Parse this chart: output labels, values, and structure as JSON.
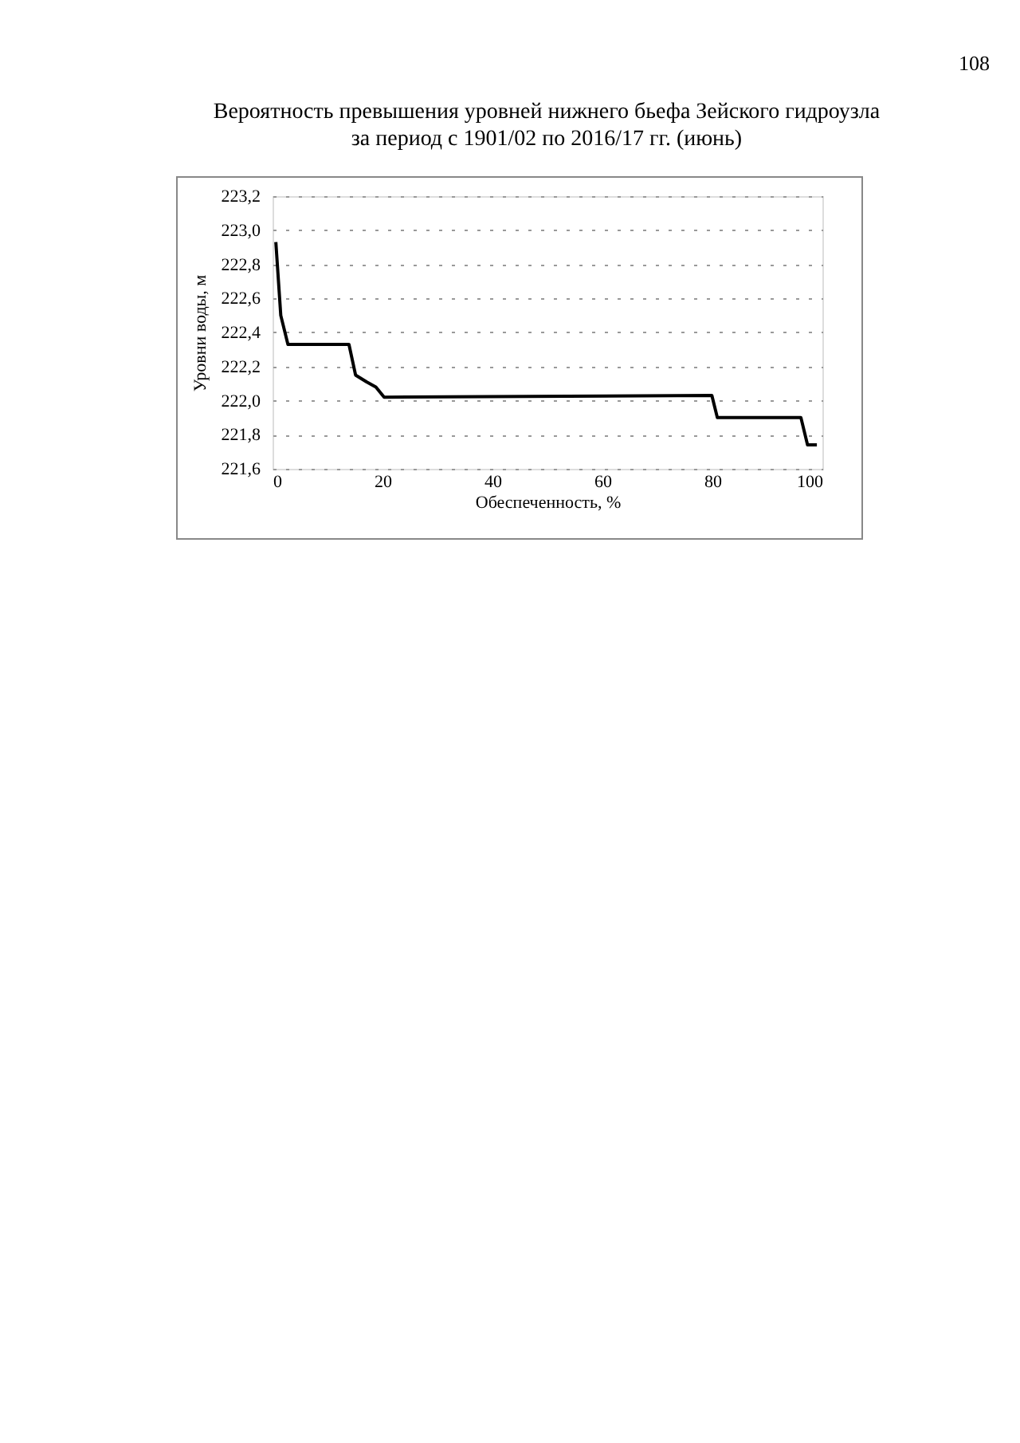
{
  "chart_data": {
    "type": "line",
    "title": "Вероятность превышения уровней нижнего бьефа Зейского гидроузла\nза период с 1901/02 по 2016/17 гг. (июнь)",
    "xlabel": "Обеспеченность, %",
    "ylabel": "Уровни воды, м",
    "x": [
      0.6,
      1.5,
      2.8,
      13.9,
      15.1,
      17.1,
      18.8,
      20.3,
      79.9,
      80.9,
      96.1,
      97.3,
      99.0
    ],
    "values": [
      222.93,
      222.5,
      222.33,
      222.33,
      222.15,
      222.11,
      222.08,
      222.02,
      222.03,
      221.9,
      221.9,
      221.74,
      221.74
    ],
    "color": "#000000",
    "xlim": [
      0,
      100
    ],
    "xticks": [
      0,
      20,
      40,
      60,
      80,
      100
    ],
    "ylim": [
      221.6,
      223.2
    ],
    "yticks": [
      {
        "value": 221.6,
        "label": "221,6"
      },
      {
        "value": 221.8,
        "label": "221,8"
      },
      {
        "value": 222.0,
        "label": "222,0"
      },
      {
        "value": 222.2,
        "label": "222,2"
      },
      {
        "value": 222.4,
        "label": "222,4"
      },
      {
        "value": 222.6,
        "label": "222,6"
      },
      {
        "value": 222.8,
        "label": "222,8"
      },
      {
        "value": 223.0,
        "label": "223,0"
      },
      {
        "value": 223.2,
        "label": "223,2"
      }
    ],
    "grid": "y",
    "marker": "none",
    "line_style": "solid",
    "annotations": [
      "108"
    ]
  }
}
